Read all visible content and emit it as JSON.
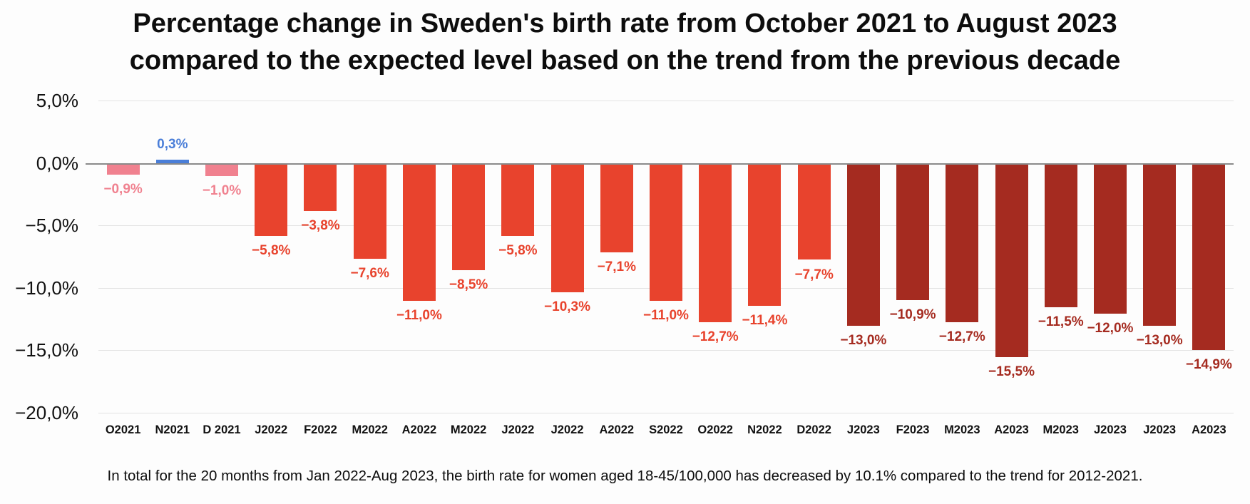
{
  "title": {
    "line1": "Percentage change in Sweden's birth rate from October 2021 to August 2023",
    "line2": "compared to the expected level based on the trend from the previous decade"
  },
  "footer": "In total for the 20 months from Jan 2022-Aug 2023, the birth rate for women aged 18-45/100,000 has decreased by 10.1% compared to the trend for 2012-2021.",
  "palette": {
    "pink": "#f0818f",
    "blue": "#4a7ed8",
    "red": "#e8432d",
    "darkred": "#a52b20",
    "grid": "#e3e3e3",
    "zero_line": "#8a8a8a",
    "text": "#0d0d0d"
  },
  "chart_data": {
    "type": "bar",
    "title": "Percentage change in Sweden's birth rate from October 2021 to August 2023 compared to the expected level based on the trend from the previous decade",
    "xlabel": "",
    "ylabel": "",
    "ylim": [
      -20,
      5
    ],
    "grid": true,
    "legend": false,
    "categories": [
      "O2021",
      "N2021",
      "D 2021",
      "J2022",
      "F2022",
      "M2022",
      "A2022",
      "M2022",
      "J2022",
      "J2022",
      "A2022",
      "S2022",
      "O2022",
      "N2022",
      "D2022",
      "J2023",
      "F2023",
      "M2023",
      "A2023",
      "M2023",
      "J2023",
      "J2023",
      "A2023"
    ],
    "values": [
      -0.9,
      0.3,
      -1.0,
      -5.8,
      -3.8,
      -7.6,
      -11.0,
      -8.5,
      -5.8,
      -10.3,
      -7.1,
      -11.0,
      -12.7,
      -11.4,
      -7.7,
      -13.0,
      -10.9,
      -12.7,
      -15.5,
      -11.5,
      -12.0,
      -13.0,
      -14.9
    ],
    "labels": [
      "−0,9%",
      "0,3%",
      "−1,0%",
      "−5,8%",
      "−3,8%",
      "−7,6%",
      "−11,0%",
      "−8,5%",
      "−5,8%",
      "−10,3%",
      "−7,1%",
      "−11,0%",
      "−12,7%",
      "−11,4%",
      "−7,7%",
      "−13,0%",
      "−10,9%",
      "−12,7%",
      "−15,5%",
      "−11,5%",
      "−12,0%",
      "−13,0%",
      "−14,9%"
    ],
    "colors": [
      "pink",
      "blue",
      "pink",
      "red",
      "red",
      "red",
      "red",
      "red",
      "red",
      "red",
      "red",
      "red",
      "red",
      "red",
      "red",
      "darkred",
      "darkred",
      "darkred",
      "darkred",
      "darkred",
      "darkred",
      "darkred",
      "darkred"
    ],
    "y_ticks": {
      "values": [
        5,
        0,
        -5,
        -10,
        -15,
        -20
      ],
      "labels": [
        "5,0%",
        "0,0%",
        "−5,0%",
        "−10,0%",
        "−15,0%",
        "−20,0%"
      ]
    }
  }
}
